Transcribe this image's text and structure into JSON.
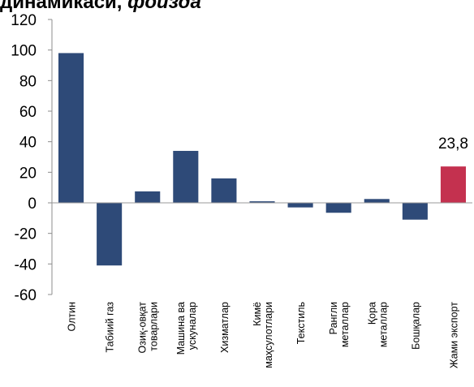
{
  "title": {
    "bold": "динамикаси,",
    "italic": "фоизда"
  },
  "chart_data": {
    "type": "bar",
    "title": "динамикаси, фоизда",
    "categories": [
      "Олтин",
      "Табиий газ",
      "Озиқ-овқат товарлари",
      "Машина ва ускуналар",
      "Хизматлар",
      "Кимё маҳсулотлари",
      "Текстиль",
      "Рангли металлар",
      "Қора металлар",
      "Бошқалар",
      "Жами экспорт"
    ],
    "tick_lines": [
      [
        "Олтин"
      ],
      [
        "Табиий газ"
      ],
      [
        "Озиқ-овқат",
        "товарлари"
      ],
      [
        "Машина ва",
        "ускуналар"
      ],
      [
        "Хизматлар"
      ],
      [
        "Кимё",
        "маҳсулотлари"
      ],
      [
        "Текстиль"
      ],
      [
        "Рангли",
        "металлар"
      ],
      [
        "Қора",
        "металлар"
      ],
      [
        "Бошқалар"
      ],
      [
        "Жами экспорт"
      ]
    ],
    "values": [
      98,
      -41,
      7.5,
      34,
      16,
      1,
      -3,
      -6.5,
      2.5,
      -11,
      23.8
    ],
    "colors": [
      "#2E4A78",
      "#2E4A78",
      "#2E4A78",
      "#2E4A78",
      "#2E4A78",
      "#2E4A78",
      "#2E4A78",
      "#2E4A78",
      "#2E4A78",
      "#2E4A78",
      "#C4314F"
    ],
    "highlight_label": {
      "index": 10,
      "text": "23,8"
    },
    "ylim": [
      -60,
      120
    ],
    "yticks": [
      -60,
      -40,
      -20,
      0,
      20,
      40,
      60,
      80,
      100,
      120
    ],
    "grid": false,
    "legend": "none"
  }
}
